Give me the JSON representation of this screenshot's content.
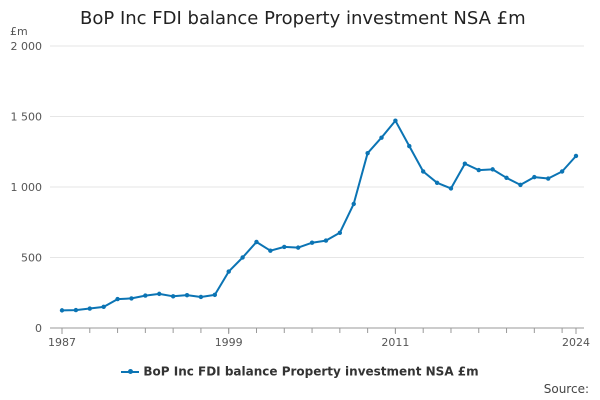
{
  "chart_data": {
    "type": "line",
    "title": "BoP Inc FDI balance Property investment NSA £m",
    "ylabel": "£m",
    "xlabel": "",
    "ylim": [
      0,
      2000
    ],
    "xlim": [
      1987,
      2024
    ],
    "y_ticks": [
      "0",
      "500",
      "1 000",
      "1 500",
      "2 000"
    ],
    "y_tick_values": [
      0,
      500,
      1000,
      1500,
      2000
    ],
    "x_tick_labels": [
      "1987",
      "1999",
      "2011",
      "2024"
    ],
    "x_tick_values": [
      1987,
      1999,
      2011,
      2024
    ],
    "series": [
      {
        "name": "BoP Inc FDI balance Property investment NSA £m",
        "color": "#0b74b4",
        "x": [
          1987,
          1988,
          1989,
          1990,
          1991,
          1992,
          1993,
          1994,
          1995,
          1996,
          1997,
          1998,
          1999,
          2000,
          2001,
          2002,
          2003,
          2004,
          2005,
          2006,
          2007,
          2008,
          2009,
          2010,
          2011,
          2012,
          2013,
          2014,
          2015,
          2016,
          2017,
          2018,
          2019,
          2020,
          2021,
          2022,
          2023,
          2024
        ],
        "values": [
          125,
          127,
          138,
          150,
          205,
          210,
          230,
          242,
          225,
          233,
          220,
          235,
          400,
          500,
          610,
          548,
          575,
          570,
          605,
          620,
          675,
          880,
          1240,
          1350,
          1470,
          1290,
          1110,
          1030,
          990,
          1165,
          1120,
          1125,
          1065,
          1015,
          1070,
          1060,
          1110,
          1220
        ]
      }
    ],
    "legend": [
      "BoP Inc FDI balance Property investment NSA £m"
    ],
    "legend_position": "bottom",
    "grid": true
  },
  "footer": {
    "source_label": "Source:"
  }
}
